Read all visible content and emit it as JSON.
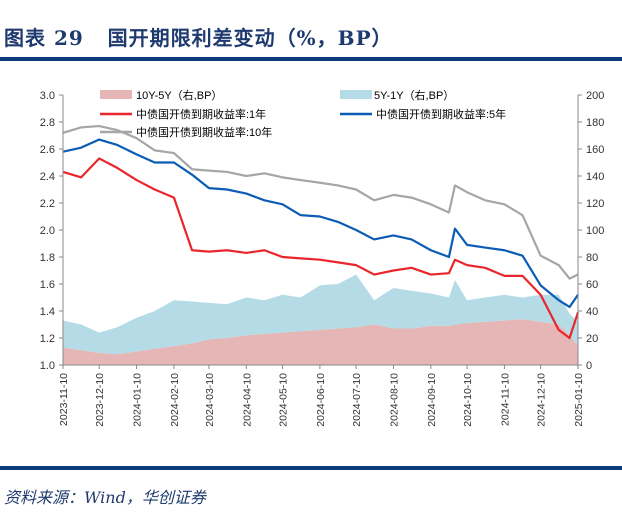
{
  "header": {
    "title": "图表 29   国开期限利差变动（%，BP）"
  },
  "footer": {
    "source": "资料来源：Wind，华创证券"
  },
  "colors": {
    "title": "#1f3a6e",
    "rule": "#0b3a7a",
    "y1": "#e8262b",
    "y5": "#0b5cb5",
    "y10": "#a6a6a6",
    "s105": "#e6b6b6",
    "s51": "#b5dbe6"
  },
  "chart_data": {
    "type": "line+stacked-area",
    "ylim_left": [
      1.0,
      3.0
    ],
    "ylim_right": [
      0,
      200
    ],
    "yticks_left": [
      "1.0",
      "1.2",
      "1.4",
      "1.6",
      "1.8",
      "2.0",
      "2.2",
      "2.4",
      "2.6",
      "2.8",
      "3.0"
    ],
    "yticks_right": [
      "0",
      "20",
      "40",
      "60",
      "80",
      "100",
      "120",
      "140",
      "160",
      "180",
      "200"
    ],
    "xticks": [
      "2023-11-10",
      "2023-12-10",
      "2024-01-10",
      "2024-02-10",
      "2024-03-10",
      "2024-04-10",
      "2024-05-10",
      "2024-06-10",
      "2024-07-10",
      "2024-08-10",
      "2024-09-10",
      "2024-10-10",
      "2024-11-10",
      "2024-12-10",
      "2025-01-10"
    ],
    "grid": false,
    "legend_position": "top",
    "x": [
      "2023-11-10",
      "2023-11-25",
      "2023-12-10",
      "2023-12-25",
      "2024-01-10",
      "2024-01-25",
      "2024-02-10",
      "2024-02-25",
      "2024-03-10",
      "2024-03-25",
      "2024-04-10",
      "2024-04-25",
      "2024-05-10",
      "2024-05-25",
      "2024-06-10",
      "2024-06-25",
      "2024-07-10",
      "2024-07-25",
      "2024-08-10",
      "2024-08-25",
      "2024-09-10",
      "2024-09-25",
      "2024-09-30",
      "2024-10-10",
      "2024-10-25",
      "2024-11-10",
      "2024-11-25",
      "2024-12-10",
      "2024-12-25",
      "2025-01-03",
      "2025-01-10"
    ],
    "areas": [
      {
        "name": "10Y-5Y（右,BP）",
        "axis": "right",
        "values": [
          13,
          11,
          9,
          8,
          10,
          12,
          14,
          16,
          19,
          20,
          22,
          23,
          24,
          25,
          26,
          27,
          28,
          30,
          27,
          27,
          29,
          29,
          30,
          31,
          32,
          33,
          34,
          32,
          30,
          22,
          14
        ]
      },
      {
        "name": "5Y-1Y（右,BP）",
        "axis": "right",
        "values": [
          20,
          19,
          15,
          20,
          25,
          28,
          34,
          31,
          27,
          25,
          28,
          25,
          28,
          25,
          33,
          33,
          39,
          18,
          30,
          28,
          24,
          21,
          33,
          17,
          18,
          19,
          16,
          20,
          22,
          16,
          18
        ]
      }
    ],
    "series": [
      {
        "name": "中债国开债到期收益率:1年",
        "axis": "left",
        "values": [
          2.43,
          2.39,
          2.53,
          2.46,
          2.37,
          2.3,
          2.24,
          1.85,
          1.84,
          1.85,
          1.83,
          1.85,
          1.8,
          1.79,
          1.78,
          1.76,
          1.74,
          1.67,
          1.7,
          1.72,
          1.67,
          1.68,
          1.78,
          1.74,
          1.72,
          1.66,
          1.66,
          1.52,
          1.26,
          1.2,
          1.39
        ]
      },
      {
        "name": "中债国开债到期收益率:5年",
        "axis": "left",
        "values": [
          2.58,
          2.61,
          2.67,
          2.63,
          2.56,
          2.5,
          2.5,
          2.41,
          2.31,
          2.3,
          2.27,
          2.22,
          2.19,
          2.11,
          2.1,
          2.06,
          2.0,
          1.93,
          1.96,
          1.93,
          1.85,
          1.8,
          2.01,
          1.89,
          1.87,
          1.85,
          1.81,
          1.59,
          1.48,
          1.43,
          1.52
        ]
      },
      {
        "name": "中债国开债到期收益率:10年",
        "axis": "left",
        "values": [
          2.72,
          2.76,
          2.77,
          2.74,
          2.68,
          2.59,
          2.57,
          2.45,
          2.44,
          2.43,
          2.4,
          2.42,
          2.39,
          2.37,
          2.35,
          2.33,
          2.3,
          2.22,
          2.26,
          2.24,
          2.19,
          2.13,
          2.33,
          2.28,
          2.22,
          2.19,
          2.11,
          1.81,
          1.74,
          1.64,
          1.67
        ]
      }
    ]
  }
}
